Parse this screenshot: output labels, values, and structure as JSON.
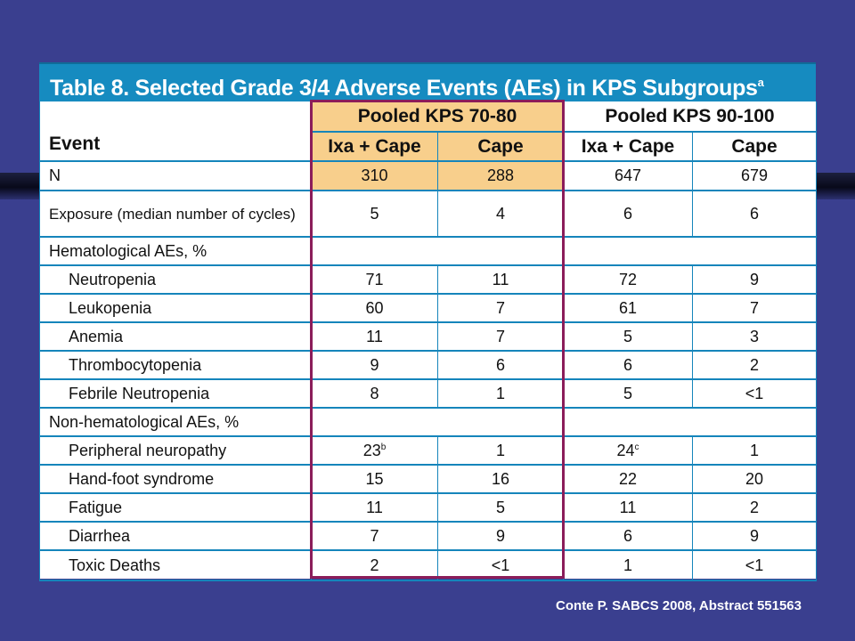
{
  "title": "Table 8. Selected Grade 3/4 Adverse Events (AEs) in KPS Subgroups",
  "title_footnote": "a",
  "header": {
    "event_label": "Event",
    "group1": "Pooled KPS 70-80",
    "group2": "Pooled KPS 90-100",
    "col_ixa_cape": "Ixa + Cape",
    "col_cape": "Cape"
  },
  "rows": [
    {
      "event": "N",
      "v": [
        "310",
        "288",
        "647",
        "679"
      ]
    },
    {
      "event": "Exposure (median number of cycles)",
      "v": [
        "5",
        "4",
        "6",
        "6"
      ]
    },
    {
      "event": "Hematological AEs, %"
    },
    {
      "event": "Neutropenia",
      "v": [
        "71",
        "11",
        "72",
        "9"
      ]
    },
    {
      "event": "Leukopenia",
      "v": [
        "60",
        "7",
        "61",
        "7"
      ]
    },
    {
      "event": "Anemia",
      "v": [
        "11",
        "7",
        "5",
        "3"
      ]
    },
    {
      "event": "Thrombocytopenia",
      "v": [
        "9",
        "6",
        "6",
        "2"
      ]
    },
    {
      "event": "Febrile Neutropenia",
      "v": [
        "8",
        "1",
        "5",
        "<1"
      ]
    },
    {
      "event": "Non-hematological AEs, %"
    },
    {
      "event": "Peripheral neuropathy",
      "v": [
        "23",
        "1",
        "24",
        "1"
      ],
      "fn": [
        "b",
        "",
        "c",
        ""
      ]
    },
    {
      "event": "Hand-foot syndrome",
      "v": [
        "15",
        "16",
        "22",
        "20"
      ]
    },
    {
      "event": "Fatigue",
      "v": [
        "11",
        "5",
        "11",
        "2"
      ]
    },
    {
      "event": "Diarrhea",
      "v": [
        "7",
        "9",
        "6",
        "9"
      ]
    },
    {
      "event": "Toxic Deaths",
      "v": [
        "2",
        "<1",
        "1",
        "<1"
      ]
    }
  ],
  "citation": "Conte P. SABCS 2008, Abstract 551563",
  "colors": {
    "background": "#3a3f8f",
    "title_bar": "#168bc0",
    "grid": "#1585bb",
    "highlight_fill": "#f8cf8c",
    "highlight_outline": "#8b1d5a"
  }
}
